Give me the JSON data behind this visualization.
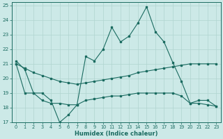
{
  "xlabel": "Humidex (Indice chaleur)",
  "xlim": [
    -0.5,
    23.5
  ],
  "ylim": [
    17,
    25.2
  ],
  "yticks": [
    17,
    18,
    19,
    20,
    21,
    22,
    23,
    24,
    25
  ],
  "xticks": [
    0,
    1,
    2,
    3,
    4,
    5,
    6,
    7,
    8,
    9,
    10,
    11,
    12,
    13,
    14,
    15,
    16,
    17,
    18,
    19,
    20,
    21,
    22,
    23
  ],
  "bg_color": "#cce9e7",
  "grid_color": "#b0d4d0",
  "line_color": "#1a6b60",
  "line1_x": [
    0,
    1,
    2,
    3,
    4,
    5,
    6,
    7,
    8,
    9,
    10,
    11,
    12,
    13,
    14,
    15,
    16,
    17,
    18,
    19,
    20,
    21,
    22,
    23
  ],
  "line1_y": [
    21.2,
    20.6,
    19.0,
    19.0,
    18.5,
    17.0,
    17.5,
    18.2,
    21.5,
    21.2,
    22.0,
    23.5,
    22.5,
    22.9,
    23.8,
    24.9,
    23.2,
    22.5,
    21.1,
    19.8,
    18.3,
    18.5,
    18.5,
    18.1
  ],
  "line2_x": [
    0,
    1,
    2,
    3,
    4,
    5,
    6,
    7,
    8,
    9,
    10,
    11,
    12,
    13,
    14,
    15,
    16,
    17,
    18,
    19,
    20,
    21,
    22,
    23
  ],
  "line2_y": [
    21.0,
    20.7,
    20.4,
    20.2,
    20.0,
    19.8,
    19.7,
    19.6,
    19.7,
    19.8,
    19.9,
    20.0,
    20.1,
    20.2,
    20.4,
    20.5,
    20.6,
    20.7,
    20.8,
    20.9,
    21.0,
    21.0,
    21.0,
    21.0
  ],
  "line3_x": [
    0,
    1,
    2,
    3,
    4,
    5,
    6,
    7,
    8,
    9,
    10,
    11,
    12,
    13,
    14,
    15,
    16,
    17,
    18,
    19,
    20,
    21,
    22,
    23
  ],
  "line3_y": [
    21.0,
    19.0,
    19.0,
    18.5,
    18.3,
    18.3,
    18.2,
    18.2,
    18.5,
    18.6,
    18.7,
    18.8,
    18.8,
    18.9,
    19.0,
    19.0,
    19.0,
    19.0,
    19.0,
    18.8,
    18.3,
    18.3,
    18.2,
    18.1
  ]
}
